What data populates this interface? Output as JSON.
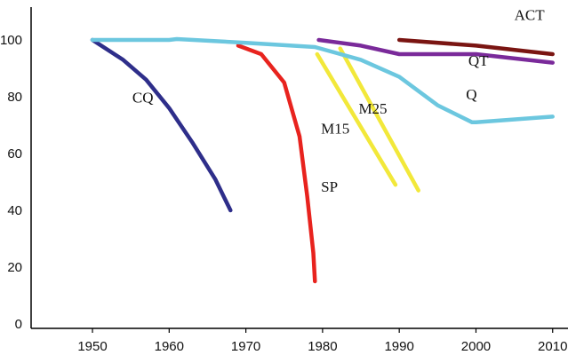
{
  "chart_data": {
    "type": "line",
    "title": "",
    "xlabel": "",
    "ylabel": "",
    "xlim": [
      1942,
      2012
    ],
    "ylim": [
      0,
      105
    ],
    "x_ticks": [
      "1950",
      "1960",
      "1970",
      "1980",
      "1990",
      "2000",
      "2010"
    ],
    "y_ticks": [
      "0",
      "20",
      "40",
      "60",
      "80",
      "100"
    ],
    "grid": false,
    "legend": "none",
    "series": [
      {
        "name": "CQ",
        "color": "#2e2e8a",
        "points": [
          [
            1950,
            100
          ],
          [
            1954,
            93
          ],
          [
            1957,
            86
          ],
          [
            1960,
            76
          ],
          [
            1963,
            64
          ],
          [
            1966,
            51
          ],
          [
            1968,
            40
          ]
        ]
      },
      {
        "name": "SP",
        "color": "#e8231e",
        "points": [
          [
            1969,
            98
          ],
          [
            1972,
            95
          ],
          [
            1975,
            85
          ],
          [
            1977,
            66
          ],
          [
            1978,
            45
          ],
          [
            1978.8,
            25
          ],
          [
            1979,
            15
          ]
        ]
      },
      {
        "name": "M15",
        "color": "#f2e83a",
        "points": [
          [
            1979.3,
            95
          ],
          [
            1989.5,
            49
          ]
        ]
      },
      {
        "name": "M25",
        "color": "#f2e83a",
        "points": [
          [
            1982.3,
            97
          ],
          [
            1992.5,
            47
          ]
        ]
      },
      {
        "name": "Q",
        "color": "#6cc7df",
        "points": [
          [
            1950,
            100
          ],
          [
            1960,
            100
          ],
          [
            1961,
            100.3
          ],
          [
            1970,
            99
          ],
          [
            1979,
            97.5
          ],
          [
            1985,
            93
          ],
          [
            1990,
            87
          ],
          [
            1995,
            77
          ],
          [
            1999.5,
            71
          ],
          [
            2000,
            71
          ],
          [
            2010,
            73
          ]
        ]
      },
      {
        "name": "QT",
        "color": "#7a2a9a",
        "points": [
          [
            1979.5,
            100
          ],
          [
            1985,
            98
          ],
          [
            1990,
            95
          ],
          [
            2000,
            95
          ],
          [
            2010,
            92
          ]
        ]
      },
      {
        "name": "ACT",
        "color": "#7a1512",
        "points": [
          [
            1990,
            100
          ],
          [
            2000,
            98
          ],
          [
            2010,
            95
          ]
        ]
      }
    ],
    "annotations": [
      {
        "text": "CQ",
        "x": 1955.2,
        "y": 78.0
      },
      {
        "text": "SP",
        "x": 1979.8,
        "y": 46.5
      },
      {
        "text": "M15",
        "x": 1979.8,
        "y": 67.0
      },
      {
        "text": "M25",
        "x": 1984.7,
        "y": 74.0
      },
      {
        "text": "Q",
        "x": 1998.7,
        "y": 79.0
      },
      {
        "text": "QT",
        "x": 1999.0,
        "y": 91.0
      },
      {
        "text": "ACT",
        "x": 2005.0,
        "y": 107.0
      }
    ]
  }
}
